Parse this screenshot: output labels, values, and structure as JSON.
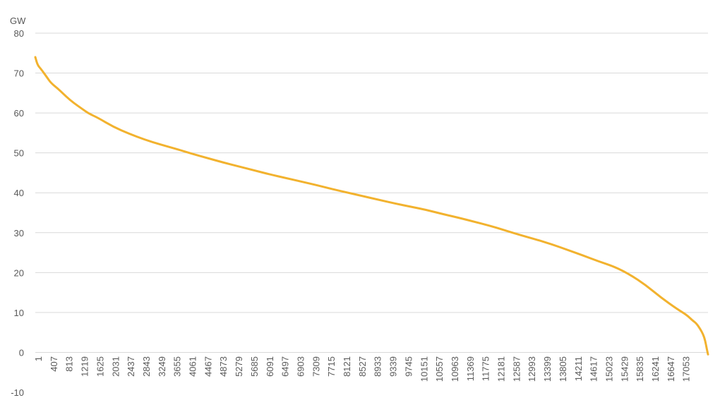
{
  "chart_data": {
    "type": "line",
    "ylabel": "GW",
    "xlabel": "",
    "title": "",
    "ylim": [
      -10,
      80
    ],
    "yticks": [
      -10,
      0,
      10,
      20,
      30,
      40,
      50,
      60,
      70,
      80
    ],
    "x_range": [
      1,
      17454
    ],
    "x_tick_labels": [
      "1",
      "407",
      "813",
      "1219",
      "1625",
      "2031",
      "2437",
      "2843",
      "3249",
      "3655",
      "4061",
      "4467",
      "4873",
      "5279",
      "5685",
      "6091",
      "6497",
      "6903",
      "7309",
      "7715",
      "8121",
      "8527",
      "8933",
      "9339",
      "9745",
      "10151",
      "10557",
      "10963",
      "11369",
      "11775",
      "12181",
      "12587",
      "12993",
      "13399",
      "13805",
      "14211",
      "14617",
      "15023",
      "15429",
      "15835",
      "16241",
      "16647",
      "17053"
    ],
    "grid": true,
    "legend": "none",
    "series": [
      {
        "color": "#f2b22e",
        "x": [
          1,
          60,
          150,
          300,
          407,
          600,
          813,
          1000,
          1219,
          1400,
          1625,
          2031,
          2437,
          2843,
          3249,
          3655,
          4061,
          4467,
          4873,
          5279,
          5685,
          6091,
          6497,
          6903,
          7309,
          7715,
          8121,
          8527,
          8933,
          9339,
          9745,
          10151,
          10557,
          10963,
          11369,
          11775,
          12181,
          12587,
          12993,
          13399,
          13805,
          14211,
          14617,
          15023,
          15429,
          15835,
          16241,
          16647,
          16900,
          17053,
          17150,
          17250,
          17330,
          17380,
          17420,
          17454
        ],
        "y": [
          74,
          72,
          71,
          69,
          67.5,
          66,
          64,
          62.5,
          61,
          59.8,
          58.8,
          56.5,
          54.8,
          53.3,
          52.1,
          51.0,
          49.8,
          48.7,
          47.6,
          46.6,
          45.6,
          44.6,
          43.7,
          42.8,
          41.9,
          40.9,
          40.0,
          39.1,
          38.2,
          37.3,
          36.5,
          35.7,
          34.7,
          33.8,
          32.8,
          31.8,
          30.6,
          29.4,
          28.3,
          27.1,
          25.7,
          24.3,
          22.8,
          21.5,
          19.5,
          16.9,
          13.7,
          10.9,
          9.4,
          8.0,
          7.3,
          5.9,
          4.5,
          3.0,
          1.0,
          -0.5
        ]
      }
    ]
  }
}
